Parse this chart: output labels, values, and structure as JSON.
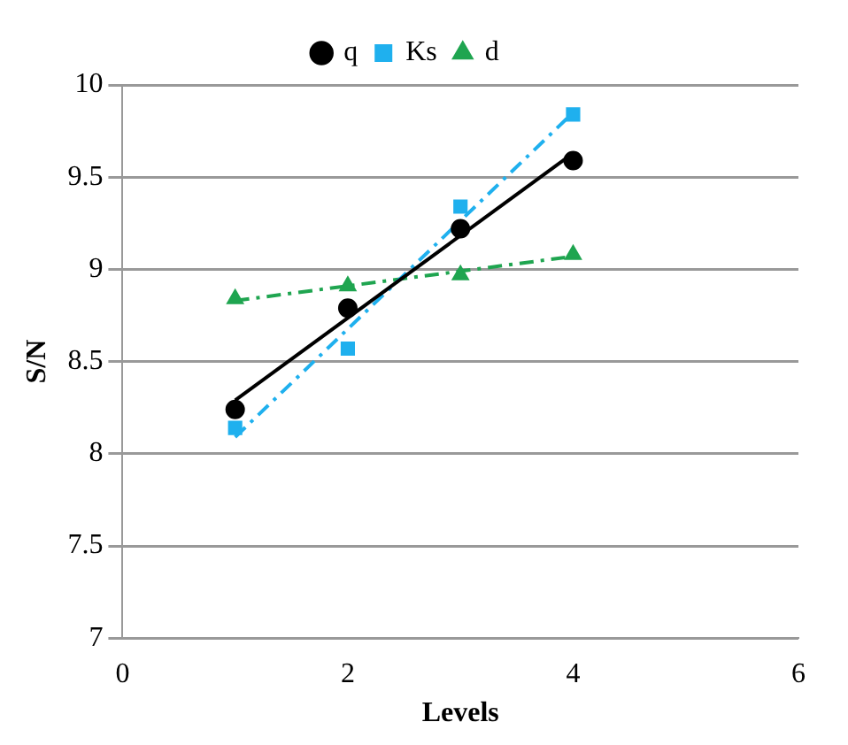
{
  "chart_data": {
    "type": "scatter",
    "xlabel": "Levels",
    "ylabel": "S/N",
    "xlim": [
      0,
      6
    ],
    "xticks": [
      0,
      2,
      4,
      6
    ],
    "ylim": [
      7,
      10
    ],
    "yticks": [
      7,
      7.5,
      8,
      8.5,
      9,
      9.5,
      10
    ],
    "grid": "y",
    "legend": "top",
    "series": [
      {
        "name": "q",
        "type": "scatter",
        "marker": "circle",
        "color": "#000000",
        "x": [
          1,
          2,
          3,
          4
        ],
        "values": [
          8.24,
          8.79,
          9.22,
          9.59
        ]
      },
      {
        "name": "Ks",
        "type": "scatter",
        "marker": "square",
        "color": "#1fb0ee",
        "x": [
          1,
          2,
          3,
          4
        ],
        "values": [
          8.14,
          8.57,
          9.34,
          9.84
        ]
      },
      {
        "name": "d",
        "type": "scatter",
        "marker": "triangle",
        "color": "#1fa550",
        "x": [
          1,
          2,
          3,
          4
        ],
        "values": [
          8.84,
          8.91,
          8.97,
          9.08
        ]
      },
      {
        "type": "line",
        "marker": "none",
        "line_style": "solid",
        "color": "#000000",
        "x": [
          1,
          4
        ],
        "values": [
          8.29,
          9.63
        ]
      },
      {
        "type": "line",
        "marker": "none",
        "line_style": "dashed",
        "color": "#1fb0ee",
        "x": [
          1,
          4
        ],
        "values": [
          8.09,
          9.85
        ]
      },
      {
        "type": "line",
        "marker": "none",
        "line_style": "dashed",
        "color": "#1fa550",
        "x": [
          1,
          4
        ],
        "values": [
          8.83,
          9.07
        ]
      }
    ]
  }
}
